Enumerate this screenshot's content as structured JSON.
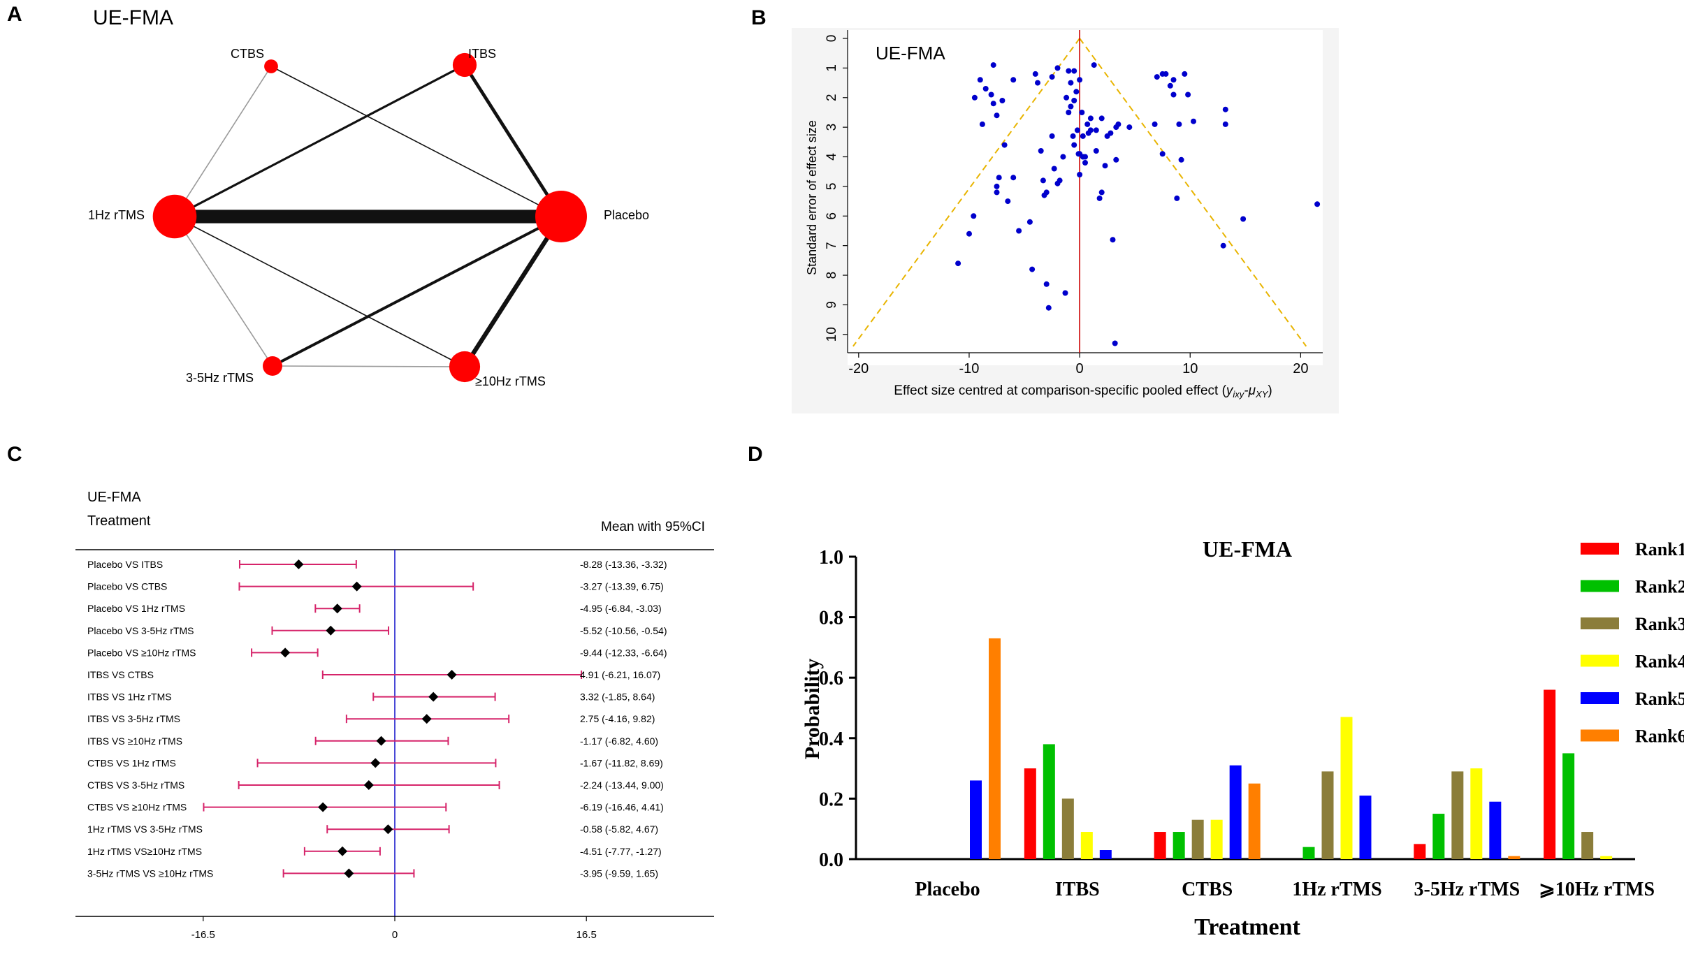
{
  "panel_letters": [
    "A",
    "B",
    "C",
    "D"
  ],
  "colors": {
    "node": "#ff0000",
    "scatter_point": "#0000cc",
    "funnel_line": "#e8b400",
    "zero_line_red": "#cc0000",
    "forest_ci": "#d6246a",
    "forest_ref_line": "#1a1acc",
    "rank_colors": [
      "#ff0000",
      "#00c000",
      "#8b7d3a",
      "#ffff00",
      "#0000ff",
      "#ff7f00"
    ]
  },
  "chart_data": [
    {
      "panel": "A",
      "type": "network",
      "title": "UE-FMA",
      "nodes": [
        {
          "id": "CTBS",
          "label": "CTBS",
          "size": 1
        },
        {
          "id": "ITBS",
          "label": "ITBS",
          "size": 3
        },
        {
          "id": "1Hz",
          "label": "1Hz rTMS",
          "size": 10
        },
        {
          "id": "Placebo",
          "label": "Placebo",
          "size": 14
        },
        {
          "id": "35Hz",
          "label": "3-5Hz rTMS",
          "size": 2
        },
        {
          "id": "10Hz",
          "label": "≥10Hz rTMS",
          "size": 5
        }
      ],
      "edges": [
        {
          "from": "CTBS",
          "to": "1Hz",
          "weight": 1,
          "style": "grey"
        },
        {
          "from": "CTBS",
          "to": "Placebo",
          "weight": 1,
          "style": "dark"
        },
        {
          "from": "ITBS",
          "to": "1Hz",
          "weight": 2,
          "style": "dark"
        },
        {
          "from": "ITBS",
          "to": "Placebo",
          "weight": 3,
          "style": "dark"
        },
        {
          "from": "1Hz",
          "to": "Placebo",
          "weight": 12,
          "style": "dark"
        },
        {
          "from": "1Hz",
          "to": "35Hz",
          "weight": 1,
          "style": "grey"
        },
        {
          "from": "1Hz",
          "to": "10Hz",
          "weight": 1,
          "style": "dark"
        },
        {
          "from": "35Hz",
          "to": "Placebo",
          "weight": 2.5,
          "style": "dark"
        },
        {
          "from": "35Hz",
          "to": "10Hz",
          "weight": 1,
          "style": "grey"
        },
        {
          "from": "10Hz",
          "to": "Placebo",
          "weight": 4,
          "style": "dark"
        }
      ]
    },
    {
      "panel": "B",
      "type": "scatter",
      "title": "UE-FMA",
      "xlabel": "Effect size centred at comparison-specific pooled effect (",
      "xlabel_math": "y",
      "xlabel_sub1": "ixy",
      "xlabel_mid": "-μ",
      "xlabel_sub2": "XY",
      "xlabel_end": ")",
      "ylabel": "Standard error of effect size",
      "xlim": [
        -21,
        22
      ],
      "ylim": [
        0,
        10.5
      ],
      "xticks": [
        -20,
        -10,
        0,
        10,
        20
      ],
      "yticks": [
        0,
        1,
        2,
        3,
        4,
        5,
        6,
        7,
        8,
        9,
        10
      ],
      "funnel_apex": [
        0,
        0
      ],
      "funnel_base": [
        [
          -20.5,
          10.4
        ],
        [
          20.5,
          10.4
        ]
      ],
      "points": [
        [
          -11,
          7.6
        ],
        [
          -10,
          6.6
        ],
        [
          -9.6,
          6
        ],
        [
          -9.5,
          2
        ],
        [
          -9,
          1.4
        ],
        [
          -8.8,
          2.9
        ],
        [
          -8.5,
          1.7
        ],
        [
          -8,
          1.9
        ],
        [
          -7.8,
          0.9
        ],
        [
          -7.8,
          2.2
        ],
        [
          -7.5,
          2.6
        ],
        [
          -7.5,
          5
        ],
        [
          -7.5,
          5.2
        ],
        [
          -7.3,
          4.7
        ],
        [
          -7,
          2.1
        ],
        [
          -6.8,
          3.6
        ],
        [
          -6.5,
          5.5
        ],
        [
          -6,
          4.7
        ],
        [
          -6,
          1.4
        ],
        [
          -5.5,
          6.5
        ],
        [
          -4.5,
          6.2
        ],
        [
          -4.3,
          7.8
        ],
        [
          -4,
          1.2
        ],
        [
          -3.8,
          1.5
        ],
        [
          -3.5,
          3.8
        ],
        [
          -3.3,
          4.8
        ],
        [
          -3.2,
          5.3
        ],
        [
          -3,
          8.3
        ],
        [
          -3,
          5.2
        ],
        [
          -2.8,
          9.1
        ],
        [
          -2.5,
          1.3
        ],
        [
          -2.5,
          3.3
        ],
        [
          -2.3,
          4.4
        ],
        [
          -2,
          1
        ],
        [
          -2,
          4.9
        ],
        [
          -1.8,
          4.8
        ],
        [
          -1.5,
          4
        ],
        [
          -1.3,
          8.6
        ],
        [
          -1.2,
          2
        ],
        [
          -1,
          2.5
        ],
        [
          -1,
          1.1
        ],
        [
          -0.8,
          1.5
        ],
        [
          -0.8,
          2.3
        ],
        [
          -0.6,
          3.3
        ],
        [
          -0.5,
          1.1
        ],
        [
          -0.5,
          2.1
        ],
        [
          -0.5,
          3.6
        ],
        [
          -0.3,
          1.8
        ],
        [
          -0.2,
          3.1
        ],
        [
          -0.1,
          3.9
        ],
        [
          0,
          3.9
        ],
        [
          0,
          4.6
        ],
        [
          0,
          1.4
        ],
        [
          0.2,
          2.5
        ],
        [
          0.3,
          3.3
        ],
        [
          0.3,
          4
        ],
        [
          0.5,
          4
        ],
        [
          0.5,
          4.2
        ],
        [
          0.7,
          2.9
        ],
        [
          0.8,
          3.2
        ],
        [
          1,
          3.1
        ],
        [
          1,
          2.7
        ],
        [
          1.3,
          0.9
        ],
        [
          1.5,
          3.1
        ],
        [
          1.5,
          3.8
        ],
        [
          1.8,
          5.4
        ],
        [
          2,
          2.7
        ],
        [
          2,
          5.2
        ],
        [
          2.3,
          4.3
        ],
        [
          2.5,
          3.3
        ],
        [
          2.8,
          3.2
        ],
        [
          3,
          6.8
        ],
        [
          3.2,
          10.3
        ],
        [
          3.3,
          3
        ],
        [
          3.3,
          4.1
        ],
        [
          3.5,
          2.9
        ],
        [
          4.5,
          3
        ],
        [
          6.8,
          2.9
        ],
        [
          7,
          1.3
        ],
        [
          7.5,
          1.2
        ],
        [
          7.5,
          3.9
        ],
        [
          7.8,
          1.2
        ],
        [
          8.2,
          1.6
        ],
        [
          8.5,
          1.4
        ],
        [
          8.5,
          1.9
        ],
        [
          8.8,
          5.4
        ],
        [
          9,
          2.9
        ],
        [
          9.2,
          4.1
        ],
        [
          9.5,
          1.2
        ],
        [
          9.8,
          1.9
        ],
        [
          10.3,
          2.8
        ],
        [
          13,
          7
        ],
        [
          13.2,
          2.4
        ],
        [
          13.2,
          2.9
        ],
        [
          14.8,
          6.1
        ],
        [
          21.5,
          5.6
        ]
      ]
    },
    {
      "panel": "C",
      "type": "forest",
      "title": "UE-FMA",
      "subtitle": "Treatment",
      "column_header": "Mean with 95%CI",
      "xlim": [
        -27.5,
        27.5
      ],
      "xticks": [
        -16.5,
        0,
        16.5
      ],
      "xtick_labels": [
        "-16.5",
        "0",
        "16.5"
      ],
      "rows": [
        {
          "label": "Placebo VS ITBS",
          "mean": -8.28,
          "lo": -13.36,
          "hi": -3.32,
          "text": "-8.28 (-13.36, -3.32)"
        },
        {
          "label": "Placebo VS CTBS",
          "mean": -3.27,
          "lo": -13.39,
          "hi": 6.75,
          "text": "-3.27 (-13.39, 6.75)"
        },
        {
          "label": "Placebo VS 1Hz rTMS",
          "mean": -4.95,
          "lo": -6.84,
          "hi": -3.03,
          "text": "-4.95 (-6.84, -3.03)"
        },
        {
          "label": "Placebo VS 3-5Hz rTMS",
          "mean": -5.52,
          "lo": -10.56,
          "hi": -0.54,
          "text": "-5.52 (-10.56, -0.54)"
        },
        {
          "label": "Placebo VS ≥10Hz rTMS",
          "mean": -9.44,
          "lo": -12.33,
          "hi": -6.64,
          "text": "-9.44 (-12.33, -6.64)"
        },
        {
          "label": "ITBS VS CTBS",
          "mean": 4.91,
          "lo": -6.21,
          "hi": 16.07,
          "text": "4.91 (-6.21, 16.07)"
        },
        {
          "label": "ITBS VS 1Hz rTMS",
          "mean": 3.32,
          "lo": -1.85,
          "hi": 8.64,
          "text": "3.32 (-1.85, 8.64)"
        },
        {
          "label": "ITBS VS 3-5Hz rTMS",
          "mean": 2.75,
          "lo": -4.16,
          "hi": 9.82,
          "text": "2.75 (-4.16, 9.82)"
        },
        {
          "label": "ITBS VS ≥10Hz rTMS",
          "mean": -1.17,
          "lo": -6.82,
          "hi": 4.6,
          "text": "-1.17 (-6.82, 4.60)"
        },
        {
          "label": "CTBS VS 1Hz rTMS",
          "mean": -1.67,
          "lo": -11.82,
          "hi": 8.69,
          "text": "-1.67 (-11.82, 8.69)"
        },
        {
          "label": "CTBS VS 3-5Hz rTMS",
          "mean": -2.24,
          "lo": -13.44,
          "hi": 9.0,
          "text": "-2.24 (-13.44, 9.00)"
        },
        {
          "label": "CTBS VS ≥10Hz rTMS",
          "mean": -6.19,
          "lo": -16.46,
          "hi": 4.41,
          "text": "-6.19 (-16.46, 4.41)"
        },
        {
          "label": "1Hz rTMS VS  3-5Hz rTMS",
          "mean": -0.58,
          "lo": -5.82,
          "hi": 4.67,
          "text": "-0.58 (-5.82, 4.67)"
        },
        {
          "label": "1Hz rTMS VS≥10Hz rTMS",
          "mean": -4.51,
          "lo": -7.77,
          "hi": -1.27,
          "text": "-4.51 (-7.77, -1.27)"
        },
        {
          "label": "3-5Hz rTMS VS ≥10Hz rTMS",
          "mean": -3.95,
          "lo": -9.59,
          "hi": 1.65,
          "text": "-3.95 (-9.59, 1.65)"
        }
      ]
    },
    {
      "panel": "D",
      "type": "bar",
      "title": "UE-FMA",
      "xlabel": "Treatment",
      "ylabel": "Probability",
      "ylim": [
        0,
        1.0
      ],
      "yticks": [
        0.0,
        0.2,
        0.4,
        0.6,
        0.8,
        1.0
      ],
      "ytick_labels": [
        "0.0",
        "0.2",
        "0.4",
        "0.6",
        "0.8",
        "1.0"
      ],
      "categories": [
        "Placebo",
        "ITBS",
        "CTBS",
        "1Hz rTMS",
        "3-5Hz rTMS",
        "⩾10Hz rTMS"
      ],
      "series": [
        {
          "name": "Rank1",
          "values": [
            0,
            0.3,
            0.09,
            0,
            0.05,
            0.56
          ]
        },
        {
          "name": "Rank2",
          "values": [
            0,
            0.38,
            0.09,
            0.04,
            0.15,
            0.35
          ]
        },
        {
          "name": "Rank3",
          "values": [
            0,
            0.2,
            0.13,
            0.29,
            0.29,
            0.09
          ]
        },
        {
          "name": "Rank4",
          "values": [
            0,
            0.09,
            0.13,
            0.47,
            0.3,
            0.01
          ]
        },
        {
          "name": "Rank5",
          "values": [
            0.26,
            0.03,
            0.31,
            0.21,
            0.19,
            0
          ]
        },
        {
          "name": "Rank6",
          "values": [
            0.73,
            0,
            0.25,
            0,
            0.01,
            0
          ]
        }
      ]
    }
  ]
}
